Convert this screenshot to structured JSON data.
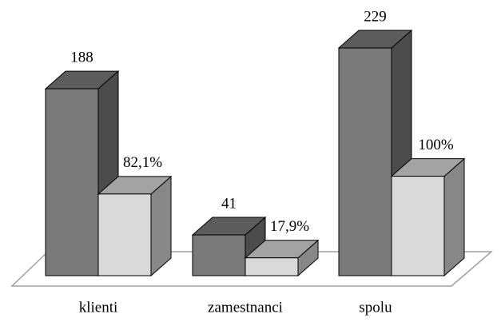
{
  "chart_data": {
    "type": "bar3d",
    "categories": [
      "klienti",
      "zamestnanci",
      "spolu"
    ],
    "series": [
      {
        "color": "#7a7a7a",
        "values": [
          188,
          41,
          229
        ]
      },
      {
        "color": "#d9d9d9",
        "values": [
          82.1,
          17.9,
          100
        ],
        "value_labels": [
          "82,1%",
          "17,9%",
          "100%"
        ]
      }
    ],
    "ylim": [
      0,
      262
    ]
  }
}
